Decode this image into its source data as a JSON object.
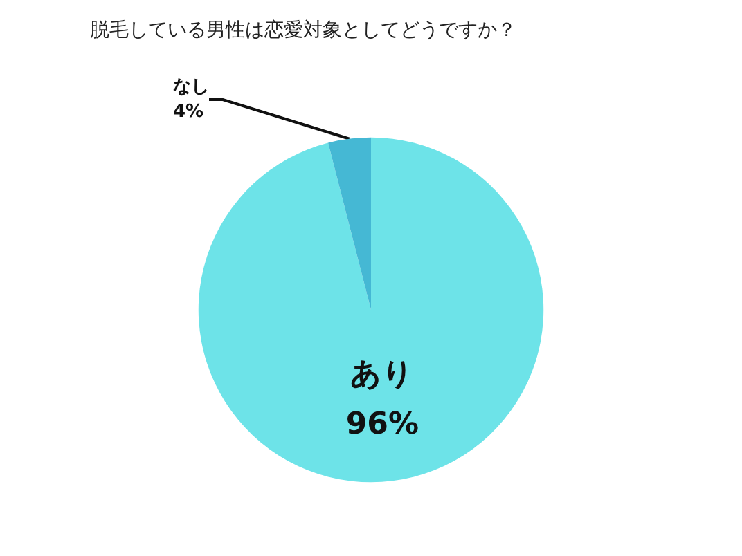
{
  "chart_data": {
    "type": "pie",
    "title": "脱毛している男性は恋愛対象としてどうですか？",
    "categories": [
      "あり",
      "なし"
    ],
    "values": [
      96,
      4
    ],
    "colors": [
      "#6de3e8",
      "#45b8d4"
    ],
    "value_labels": [
      "96%",
      "4%"
    ],
    "legend": false
  }
}
